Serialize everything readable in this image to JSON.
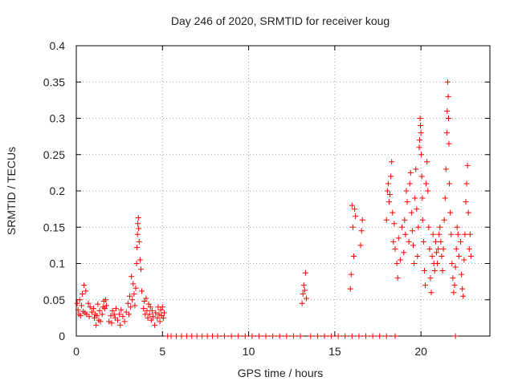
{
  "chart_data": {
    "type": "scatter",
    "title": "Day 246 of 2020, SRMTID for receiver koug",
    "xlabel": "GPS time / hours",
    "ylabel": "SRMTID / TECUs",
    "xlim": [
      0,
      24
    ],
    "ylim": [
      0,
      0.4
    ],
    "grid": true,
    "marker": "+",
    "color": "#ff0000",
    "x_ticks": [
      {
        "value": 0,
        "label": "0"
      },
      {
        "value": 5,
        "label": "5"
      },
      {
        "value": 10,
        "label": "10"
      },
      {
        "value": 15,
        "label": "15"
      },
      {
        "value": 20,
        "label": "20"
      }
    ],
    "y_ticks": [
      {
        "value": 0,
        "label": "0"
      },
      {
        "value": 0.05,
        "label": "0.05"
      },
      {
        "value": 0.1,
        "label": "0.1"
      },
      {
        "value": 0.15,
        "label": "0.15"
      },
      {
        "value": 0.2,
        "label": "0.2"
      },
      {
        "value": 0.25,
        "label": "0.25"
      },
      {
        "value": 0.3,
        "label": "0.3"
      },
      {
        "value": 0.35,
        "label": "0.35"
      },
      {
        "value": 0.4,
        "label": "0.4"
      }
    ],
    "series": [
      {
        "name": "SRMTID",
        "points": [
          [
            0.05,
            0.045
          ],
          [
            0.1,
            0.036
          ],
          [
            0.15,
            0.03
          ],
          [
            0.2,
            0.05
          ],
          [
            0.25,
            0.028
          ],
          [
            0.3,
            0.042
          ],
          [
            0.35,
            0.058
          ],
          [
            0.4,
            0.034
          ],
          [
            0.45,
            0.07
          ],
          [
            0.5,
            0.032
          ],
          [
            0.55,
            0.062
          ],
          [
            0.6,
            0.03
          ],
          [
            0.7,
            0.045
          ],
          [
            0.75,
            0.027
          ],
          [
            0.8,
            0.04
          ],
          [
            0.9,
            0.033
          ],
          [
            1.0,
            0.038
          ],
          [
            1.05,
            0.025
          ],
          [
            1.1,
            0.03
          ],
          [
            1.15,
            0.015
          ],
          [
            1.2,
            0.028
          ],
          [
            1.25,
            0.044
          ],
          [
            1.3,
            0.022
          ],
          [
            1.35,
            0.035
          ],
          [
            1.4,
            0.02
          ],
          [
            1.5,
            0.03
          ],
          [
            1.55,
            0.04
          ],
          [
            1.6,
            0.048
          ],
          [
            1.65,
            0.038
          ],
          [
            1.7,
            0.05
          ],
          [
            1.75,
            0.042
          ],
          [
            1.9,
            0.02
          ],
          [
            2.0,
            0.028
          ],
          [
            2.05,
            0.018
          ],
          [
            2.1,
            0.035
          ],
          [
            2.2,
            0.03
          ],
          [
            2.25,
            0.025
          ],
          [
            2.3,
            0.038
          ],
          [
            2.4,
            0.022
          ],
          [
            2.5,
            0.03
          ],
          [
            2.55,
            0.015
          ],
          [
            2.6,
            0.036
          ],
          [
            2.7,
            0.027
          ],
          [
            2.8,
            0.02
          ],
          [
            2.9,
            0.033
          ],
          [
            3.0,
            0.045
          ],
          [
            3.05,
            0.03
          ],
          [
            3.1,
            0.055
          ],
          [
            3.15,
            0.04
          ],
          [
            3.2,
            0.082
          ],
          [
            3.25,
            0.05
          ],
          [
            3.3,
            0.072
          ],
          [
            3.35,
            0.058
          ],
          [
            3.4,
            0.042
          ],
          [
            3.45,
            0.066
          ],
          [
            3.5,
            0.1
          ],
          [
            3.52,
            0.122
          ],
          [
            3.55,
            0.14
          ],
          [
            3.57,
            0.155
          ],
          [
            3.6,
            0.163
          ],
          [
            3.62,
            0.148
          ],
          [
            3.65,
            0.13
          ],
          [
            3.7,
            0.105
          ],
          [
            3.75,
            0.092
          ],
          [
            3.8,
            0.062
          ],
          [
            3.9,
            0.038
          ],
          [
            3.95,
            0.048
          ],
          [
            4.0,
            0.03
          ],
          [
            4.05,
            0.052
          ],
          [
            4.1,
            0.035
          ],
          [
            4.15,
            0.025
          ],
          [
            4.2,
            0.044
          ],
          [
            4.25,
            0.03
          ],
          [
            4.3,
            0.04
          ],
          [
            4.35,
            0.022
          ],
          [
            4.4,
            0.035
          ],
          [
            4.45,
            0.027
          ],
          [
            4.55,
            0.015
          ],
          [
            4.6,
            0.032
          ],
          [
            4.7,
            0.025
          ],
          [
            4.75,
            0.04
          ],
          [
            4.8,
            0.03
          ],
          [
            4.85,
            0.02
          ],
          [
            4.9,
            0.036
          ],
          [
            4.95,
            0.028
          ],
          [
            5.0,
            0.04
          ],
          [
            5.05,
            0.025
          ],
          [
            5.1,
            0.032
          ],
          [
            5.3,
            0.0
          ],
          [
            5.5,
            0.0
          ],
          [
            5.8,
            0.0
          ],
          [
            6.1,
            0.0
          ],
          [
            6.4,
            0.0
          ],
          [
            6.7,
            0.0
          ],
          [
            7.0,
            0.0
          ],
          [
            7.3,
            0.0
          ],
          [
            7.6,
            0.0
          ],
          [
            7.9,
            0.0
          ],
          [
            8.2,
            0.0
          ],
          [
            8.6,
            0.0
          ],
          [
            9.0,
            0.0
          ],
          [
            9.4,
            0.0
          ],
          [
            9.8,
            0.0
          ],
          [
            10.2,
            0.0
          ],
          [
            10.6,
            0.0
          ],
          [
            11.0,
            0.0
          ],
          [
            11.4,
            0.0
          ],
          [
            11.8,
            0.0
          ],
          [
            12.2,
            0.0
          ],
          [
            12.6,
            0.0
          ],
          [
            13.0,
            0.0
          ],
          [
            13.6,
            0.0
          ],
          [
            14.0,
            0.0
          ],
          [
            14.4,
            0.0
          ],
          [
            14.8,
            0.0
          ],
          [
            15.2,
            0.0
          ],
          [
            15.6,
            0.0
          ],
          [
            16.0,
            0.0
          ],
          [
            16.4,
            0.0
          ],
          [
            16.8,
            0.0
          ],
          [
            17.2,
            0.0
          ],
          [
            17.6,
            0.0
          ],
          [
            18.0,
            0.0
          ],
          [
            18.5,
            0.0
          ],
          [
            22.0,
            0.0
          ],
          [
            13.1,
            0.045
          ],
          [
            13.15,
            0.058
          ],
          [
            13.2,
            0.07
          ],
          [
            13.25,
            0.063
          ],
          [
            13.3,
            0.087
          ],
          [
            13.35,
            0.052
          ],
          [
            15.9,
            0.065
          ],
          [
            15.95,
            0.085
          ],
          [
            16.0,
            0.18
          ],
          [
            16.05,
            0.15
          ],
          [
            16.1,
            0.11
          ],
          [
            16.15,
            0.175
          ],
          [
            16.2,
            0.165
          ],
          [
            16.5,
            0.125
          ],
          [
            16.55,
            0.145
          ],
          [
            16.6,
            0.16
          ],
          [
            18.0,
            0.16
          ],
          [
            18.05,
            0.2
          ],
          [
            18.1,
            0.21
          ],
          [
            18.15,
            0.185
          ],
          [
            18.2,
            0.195
          ],
          [
            18.25,
            0.22
          ],
          [
            18.3,
            0.24
          ],
          [
            18.35,
            0.17
          ],
          [
            18.4,
            0.13
          ],
          [
            18.45,
            0.155
          ],
          [
            18.5,
            0.12
          ],
          [
            18.6,
            0.1
          ],
          [
            18.65,
            0.08
          ],
          [
            18.7,
            0.135
          ],
          [
            18.8,
            0.105
          ],
          [
            18.9,
            0.15
          ],
          [
            19.0,
            0.115
          ],
          [
            19.05,
            0.16
          ],
          [
            19.1,
            0.14
          ],
          [
            19.15,
            0.2
          ],
          [
            19.2,
            0.185
          ],
          [
            19.3,
            0.13
          ],
          [
            19.35,
            0.21
          ],
          [
            19.4,
            0.225
          ],
          [
            19.45,
            0.17
          ],
          [
            19.5,
            0.145
          ],
          [
            19.55,
            0.125
          ],
          [
            19.6,
            0.1
          ],
          [
            19.65,
            0.19
          ],
          [
            19.7,
            0.23
          ],
          [
            19.75,
            0.175
          ],
          [
            19.8,
            0.11
          ],
          [
            19.85,
            0.15
          ],
          [
            19.9,
            0.26
          ],
          [
            19.92,
            0.27
          ],
          [
            19.95,
            0.3
          ],
          [
            19.97,
            0.29
          ],
          [
            20.0,
            0.28
          ],
          [
            20.02,
            0.25
          ],
          [
            20.05,
            0.22
          ],
          [
            20.08,
            0.19
          ],
          [
            20.1,
            0.16
          ],
          [
            20.15,
            0.13
          ],
          [
            20.2,
            0.09
          ],
          [
            20.25,
            0.07
          ],
          [
            20.3,
            0.21
          ],
          [
            20.35,
            0.24
          ],
          [
            20.4,
            0.2
          ],
          [
            20.45,
            0.15
          ],
          [
            20.5,
            0.12
          ],
          [
            20.55,
            0.08
          ],
          [
            20.6,
            0.06
          ],
          [
            20.65,
            0.11
          ],
          [
            20.7,
            0.14
          ],
          [
            20.75,
            0.1
          ],
          [
            20.8,
            0.09
          ],
          [
            20.85,
            0.13
          ],
          [
            20.9,
            0.115
          ],
          [
            20.95,
            0.1
          ],
          [
            21.0,
            0.12
          ],
          [
            21.05,
            0.14
          ],
          [
            21.1,
            0.15
          ],
          [
            21.15,
            0.13
          ],
          [
            21.2,
            0.11
          ],
          [
            21.25,
            0.09
          ],
          [
            21.3,
            0.12
          ],
          [
            21.35,
            0.16
          ],
          [
            21.4,
            0.19
          ],
          [
            21.45,
            0.23
          ],
          [
            21.5,
            0.28
          ],
          [
            21.52,
            0.31
          ],
          [
            21.55,
            0.35
          ],
          [
            21.58,
            0.33
          ],
          [
            21.6,
            0.3
          ],
          [
            21.62,
            0.265
          ],
          [
            21.65,
            0.21
          ],
          [
            21.7,
            0.17
          ],
          [
            21.75,
            0.14
          ],
          [
            21.8,
            0.1
          ],
          [
            21.85,
            0.08
          ],
          [
            21.9,
            0.06
          ],
          [
            21.95,
            0.07
          ],
          [
            22.0,
            0.095
          ],
          [
            22.05,
            0.12
          ],
          [
            22.1,
            0.15
          ],
          [
            22.15,
            0.14
          ],
          [
            22.2,
            0.11
          ],
          [
            22.3,
            0.13
          ],
          [
            22.35,
            0.085
          ],
          [
            22.4,
            0.065
          ],
          [
            22.45,
            0.055
          ],
          [
            22.5,
            0.105
          ],
          [
            22.55,
            0.14
          ],
          [
            22.6,
            0.185
          ],
          [
            22.65,
            0.21
          ],
          [
            22.7,
            0.235
          ],
          [
            22.75,
            0.17
          ],
          [
            22.8,
            0.12
          ],
          [
            22.85,
            0.14
          ],
          [
            22.9,
            0.11
          ]
        ]
      }
    ]
  }
}
